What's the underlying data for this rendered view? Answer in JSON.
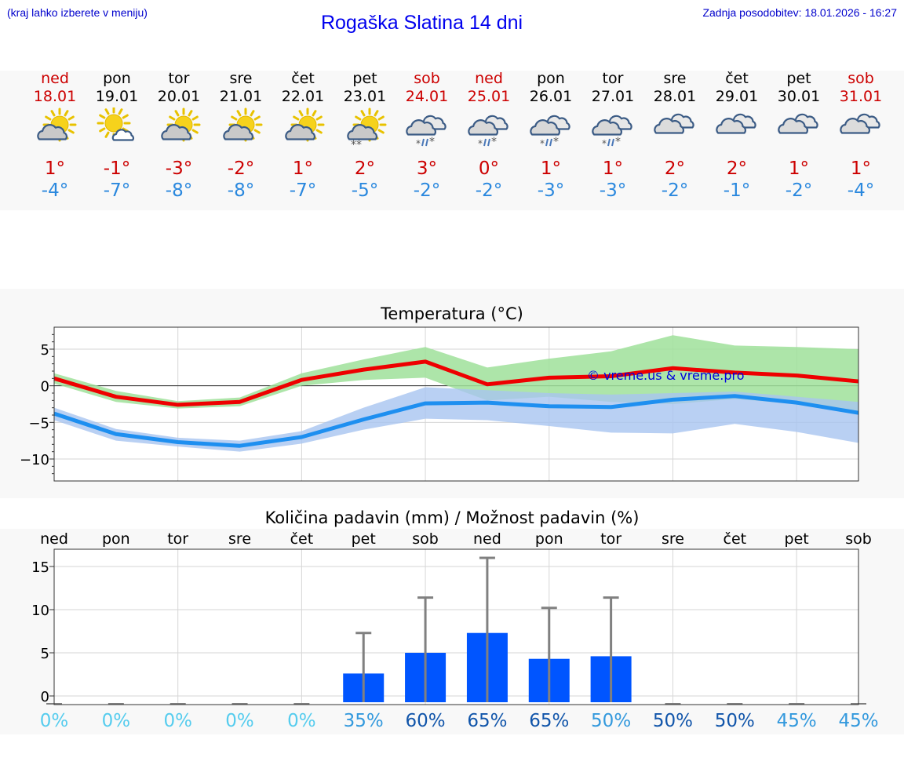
{
  "header": {
    "menu_note": "(kraj lahko izberete v meniju)",
    "title": "Rogaška Slatina 14 dni",
    "updated": "Zadnja posodobitev: 18.01.2026 - 16:27"
  },
  "colors": {
    "weekday": "#000000",
    "weekend": "#cc0000",
    "high": "#cc0000",
    "low": "#2a88de",
    "temp_max_line": "#ee0000",
    "temp_max_band": "#9fe09a",
    "temp_min_line": "#1e8ff0",
    "temp_min_band": "#a8c4f0",
    "precip_bar": "#0055ff",
    "precip_whisker": "#808080",
    "prob_low": "#55ccee",
    "prob_mid": "#3399dd",
    "prob_high": "#1155aa"
  },
  "days": [
    {
      "name": "ned",
      "date": "18.01",
      "weekend": true,
      "icon": "partly-sunny-icon",
      "high": "1°",
      "low": "-4°"
    },
    {
      "name": "pon",
      "date": "19.01",
      "weekend": false,
      "icon": "mostly-sunny-icon",
      "high": "-1°",
      "low": "-7°"
    },
    {
      "name": "tor",
      "date": "20.01",
      "weekend": false,
      "icon": "partly-sunny-icon",
      "high": "-3°",
      "low": "-8°"
    },
    {
      "name": "sre",
      "date": "21.01",
      "weekend": false,
      "icon": "partly-sunny-icon",
      "high": "-2°",
      "low": "-8°"
    },
    {
      "name": "čet",
      "date": "22.01",
      "weekend": false,
      "icon": "partly-sunny-icon",
      "high": "1°",
      "low": "-7°"
    },
    {
      "name": "pet",
      "date": "23.01",
      "weekend": false,
      "icon": "sunny-snow-icon",
      "high": "2°",
      "low": "-5°"
    },
    {
      "name": "sob",
      "date": "24.01",
      "weekend": true,
      "icon": "cloud-sleet-icon",
      "high": "3°",
      "low": "-2°"
    },
    {
      "name": "ned",
      "date": "25.01",
      "weekend": true,
      "icon": "cloud-sleet-icon",
      "high": "0°",
      "low": "-2°"
    },
    {
      "name": "pon",
      "date": "26.01",
      "weekend": false,
      "icon": "cloud-sleet-icon",
      "high": "1°",
      "low": "-3°"
    },
    {
      "name": "tor",
      "date": "27.01",
      "weekend": false,
      "icon": "cloud-sleet-icon",
      "high": "1°",
      "low": "-3°"
    },
    {
      "name": "sre",
      "date": "28.01",
      "weekend": false,
      "icon": "cloudy-icon",
      "high": "2°",
      "low": "-2°"
    },
    {
      "name": "čet",
      "date": "29.01",
      "weekend": false,
      "icon": "cloudy-icon",
      "high": "2°",
      "low": "-1°"
    },
    {
      "name": "pet",
      "date": "30.01",
      "weekend": false,
      "icon": "cloudy-icon",
      "high": "1°",
      "low": "-2°"
    },
    {
      "name": "sob",
      "date": "31.01",
      "weekend": true,
      "icon": "cloudy-icon",
      "high": "1°",
      "low": "-4°"
    }
  ],
  "chart_data": [
    {
      "type": "line",
      "title": "Temperatura (°C)",
      "watermark": "© vreme.us & vreme.pro",
      "x": [
        0,
        1,
        2,
        3,
        4,
        5,
        6,
        7,
        8,
        9,
        10,
        11,
        12,
        13
      ],
      "ylim": [
        -13,
        8
      ],
      "yticks": [
        5,
        0,
        -5,
        -10
      ],
      "ytick_labels": [
        "5",
        "0",
        "−5",
        "−10"
      ],
      "grid": true,
      "series": [
        {
          "name": "max",
          "values": [
            1.0,
            -1.5,
            -2.6,
            -2.2,
            0.8,
            2.2,
            3.3,
            0.2,
            1.1,
            1.3,
            2.4,
            1.8,
            1.4,
            0.6
          ],
          "band_upper": [
            1.7,
            -0.7,
            -2.1,
            -1.6,
            1.7,
            3.6,
            5.3,
            2.5,
            3.7,
            4.7,
            6.9,
            5.5,
            5.3,
            5.0
          ],
          "band_lower": [
            0.3,
            -2.2,
            -3.1,
            -2.8,
            0.0,
            0.8,
            1.1,
            -2.0,
            -1.5,
            -2.2,
            -2.5,
            -1.8,
            -2.5,
            -3.6
          ]
        },
        {
          "name": "min",
          "values": [
            -3.8,
            -6.6,
            -7.7,
            -8.2,
            -7.0,
            -4.6,
            -2.4,
            -2.3,
            -2.8,
            -2.9,
            -1.9,
            -1.4,
            -2.3,
            -3.7
          ],
          "band_upper": [
            -3.0,
            -5.9,
            -7.1,
            -7.5,
            -6.2,
            -3.0,
            -0.2,
            -0.6,
            -1.0,
            -1.2,
            -1.0,
            -0.8,
            -1.5,
            -2.2
          ],
          "band_lower": [
            -4.7,
            -7.5,
            -8.3,
            -9.0,
            -7.9,
            -6.0,
            -4.5,
            -4.7,
            -5.5,
            -6.4,
            -6.5,
            -5.2,
            -6.3,
            -7.8
          ]
        }
      ]
    },
    {
      "type": "bar",
      "title": "Količina padavin (mm) / Možnost padavin (%)",
      "categories": [
        "ned",
        "pon",
        "tor",
        "sre",
        "čet",
        "pet",
        "sob",
        "ned",
        "pon",
        "tor",
        "sre",
        "čet",
        "pet",
        "sob"
      ],
      "values": [
        0,
        0,
        0,
        0,
        0,
        2.6,
        5.0,
        7.3,
        4.3,
        4.6,
        0,
        0,
        0,
        0
      ],
      "error_upper": [
        0,
        0,
        0,
        0,
        0,
        7.3,
        11.4,
        16.0,
        10.2,
        11.4,
        0,
        0,
        0,
        0
      ],
      "probability": [
        "0%",
        "0%",
        "0%",
        "0%",
        "0%",
        "35%",
        "60%",
        "65%",
        "65%",
        "50%",
        "50%",
        "50%",
        "45%",
        "45%"
      ],
      "prob_level": [
        "low",
        "low",
        "low",
        "low",
        "low",
        "mid",
        "high",
        "high",
        "high",
        "mid",
        "high",
        "high",
        "mid",
        "mid"
      ],
      "ylim": [
        -1,
        17
      ],
      "yticks": [
        15,
        10,
        5,
        0
      ],
      "ytick_labels": [
        "15",
        "10",
        "5",
        "0"
      ],
      "grid": true
    }
  ]
}
